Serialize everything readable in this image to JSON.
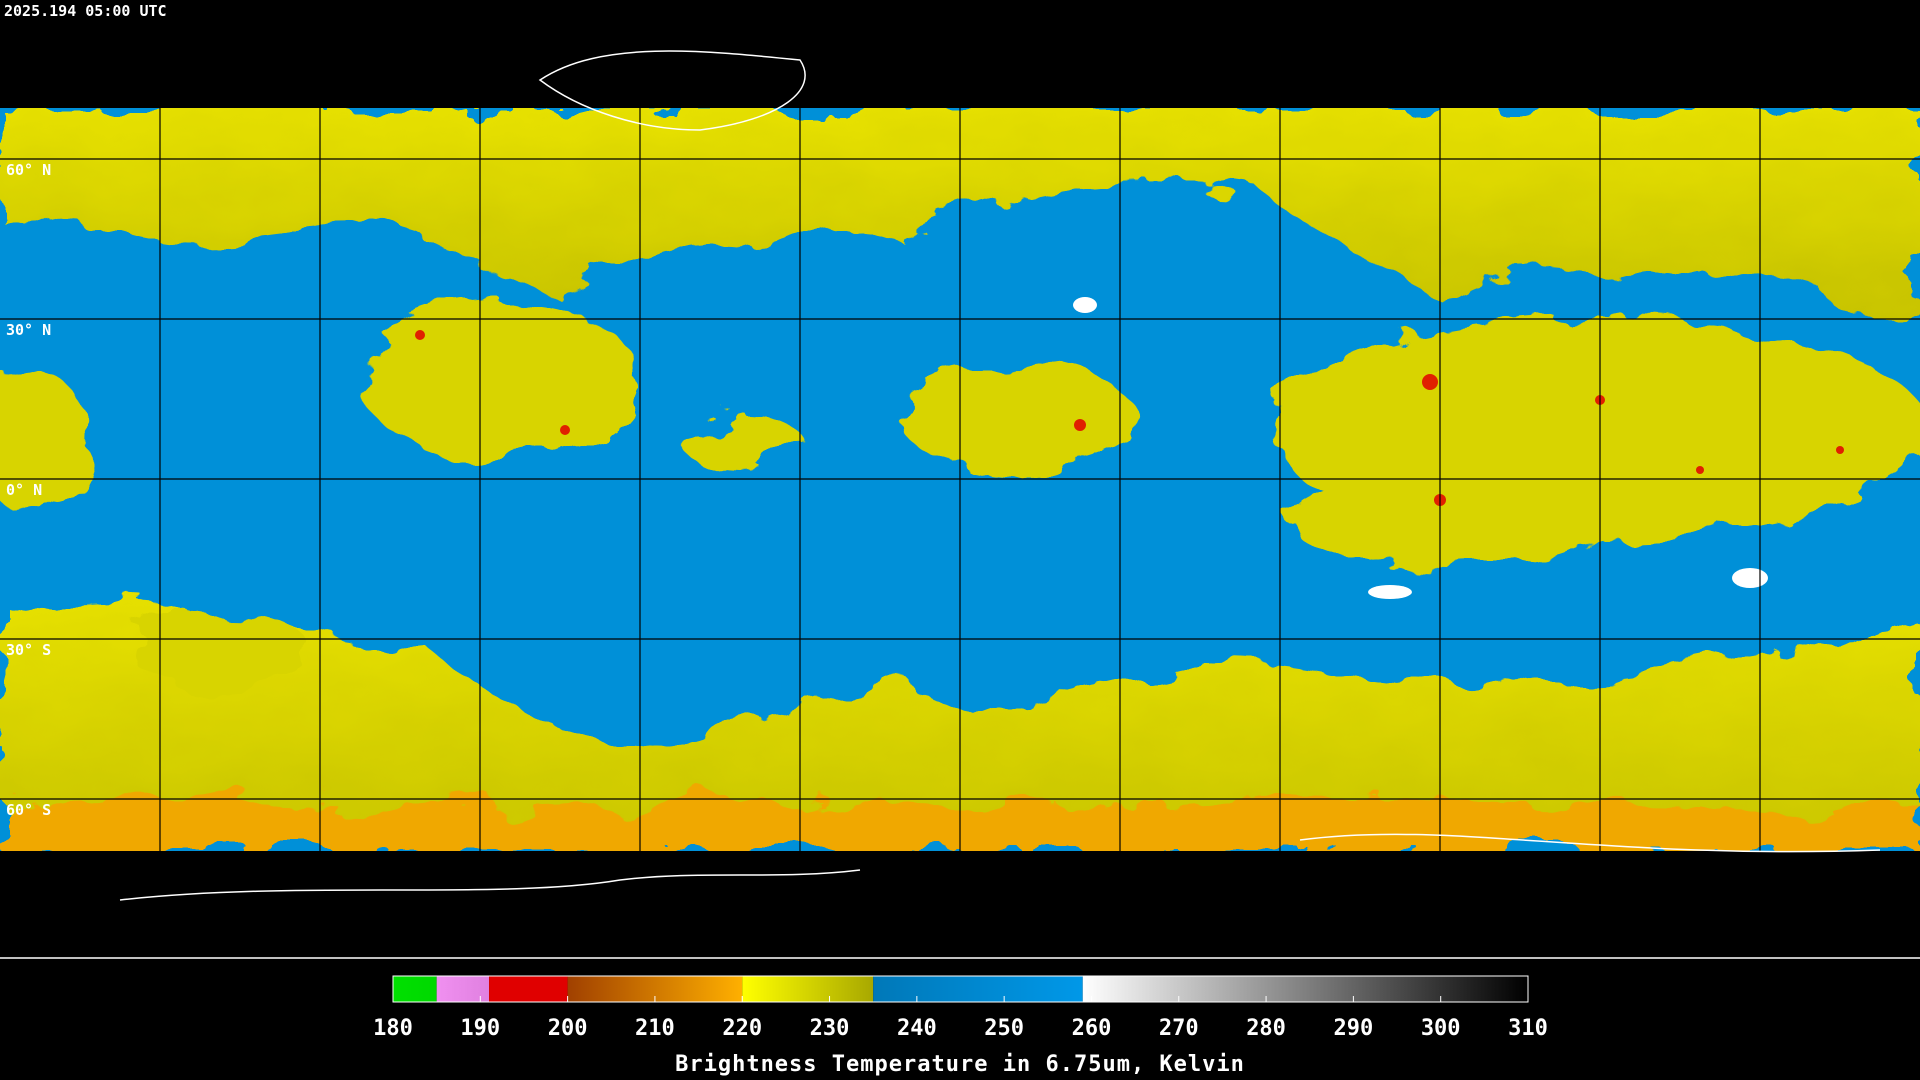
{
  "timestamp": "2025.194 05:00 UTC",
  "latitude_lines": [
    {
      "value": 60,
      "label": "60° N"
    },
    {
      "value": 30,
      "label": "30° N"
    },
    {
      "value": 0,
      "label": "0° N"
    },
    {
      "value": -30,
      "label": "30° S"
    },
    {
      "value": -60,
      "label": "60° S"
    }
  ],
  "colorbar": {
    "title": "Brightness Temperature in 6.75um, Kelvin",
    "range": [
      180,
      310
    ],
    "ticks": [
      180,
      190,
      200,
      210,
      220,
      230,
      240,
      250,
      260,
      270,
      280,
      290,
      300,
      310
    ],
    "segments": [
      {
        "start": 180,
        "end": 185,
        "colors": [
          "#00e000",
          "#00d800"
        ]
      },
      {
        "start": 185,
        "end": 191,
        "colors": [
          "#f090f0",
          "#e080e0"
        ]
      },
      {
        "start": 191,
        "end": 200,
        "colors": [
          "#e00000",
          "#e00000"
        ]
      },
      {
        "start": 200,
        "end": 220,
        "colors": [
          "#a04000",
          "#ffb000"
        ]
      },
      {
        "start": 220,
        "end": 235,
        "colors": [
          "#ffff00",
          "#a8a800"
        ]
      },
      {
        "start": 235,
        "end": 259,
        "colors": [
          "#0078b8",
          "#0098e8"
        ]
      },
      {
        "start": 259,
        "end": 310,
        "colors": [
          "#ffffff",
          "#000000"
        ]
      }
    ]
  }
}
